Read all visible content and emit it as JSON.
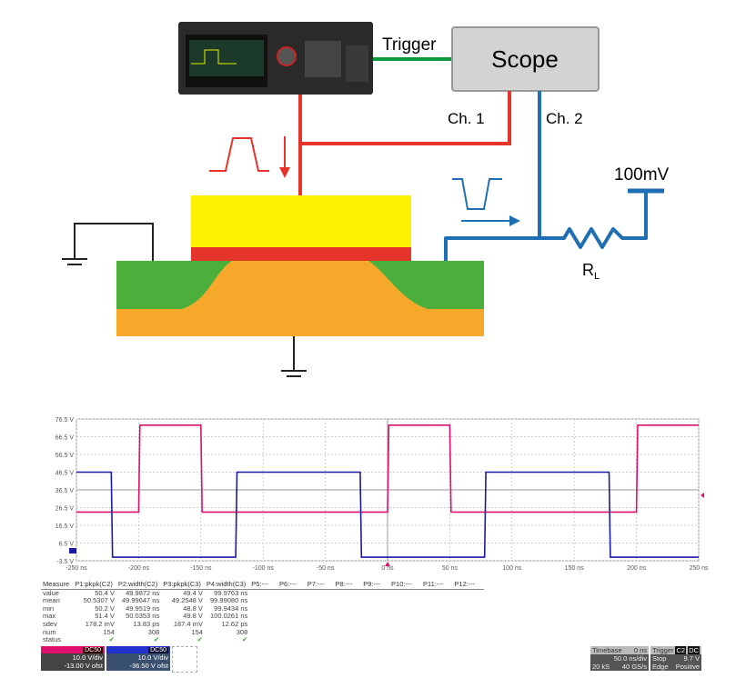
{
  "diagram": {
    "trigger_label": "Trigger",
    "scope_label": "Scope",
    "ch1_label": "Ch. 1",
    "ch2_label": "Ch. 2",
    "supply_label": "100mV",
    "resistor_label": "R",
    "resistor_sub": "L",
    "colors": {
      "trigger": "#0a9a3c",
      "ch1": "#e5342a",
      "ch2": "#1e6fb4",
      "gate": "#fff200",
      "oxide": "#e5342a",
      "substrate": "#f5a82a",
      "doped": "#4caf3c"
    }
  },
  "scope": {
    "y_ticks": [
      "76.5 V",
      "66.5 V",
      "56.5 V",
      "46.5 V",
      "36.5 V",
      "26.5 V",
      "16.5 V",
      "6.5 V",
      "-3.5 V"
    ],
    "x_ticks": [
      "-250 ns",
      "-200 ns",
      "-150 ns",
      "-100 ns",
      "-50 ns",
      "0 ns",
      "50 ns",
      "100 ns",
      "150 ns",
      "200 ns",
      "250 ns"
    ],
    "colors": {
      "c2": "#e0106e",
      "c3": "#1a1aaa"
    }
  },
  "chart_data": {
    "type": "line",
    "xlim": [
      -250,
      250
    ],
    "ylim": [
      -3.5,
      76.5
    ],
    "x_unit": "ns",
    "y_unit": "V",
    "grid": true,
    "series": [
      {
        "name": "C2",
        "low": 24,
        "high": 73,
        "rising_edges": [
          -200,
          0,
          200
        ],
        "falling_edges": [
          -150,
          50
        ]
      },
      {
        "name": "C3",
        "low": -1.5,
        "high": 46.5,
        "rising_edges": [
          -122,
          78
        ],
        "falling_edges": [
          -222,
          -22,
          178
        ]
      }
    ]
  },
  "measure": {
    "headers": [
      "Measure",
      "P1:pkpk(C2)",
      "P2:width(C2)",
      "P3:pkpk(C3)",
      "P4:width(C3)",
      "P5:---",
      "P6:---",
      "P7:---",
      "P8:---",
      "P9:---",
      "P10:---",
      "P11:---",
      "P12:---"
    ],
    "rows": [
      [
        "value",
        "50.4 V",
        "49.9872 ns",
        "49.4 V",
        "99.9763 ns"
      ],
      [
        "mean",
        "50.5307 V",
        "49.99647 ns",
        "49.2548 V",
        "99.99080 ns"
      ],
      [
        "min",
        "50.2 V",
        "49.9519 ns",
        "48.8 V",
        "99.9434 ns"
      ],
      [
        "max",
        "51.4 V",
        "50.0353 ns",
        "49.8 V",
        "100.0261 ns"
      ],
      [
        "sdev",
        "178.2 mV",
        "13.83 ps",
        "187.4 mV",
        "12.62 ps"
      ],
      [
        "num",
        "154",
        "308",
        "154",
        "308"
      ],
      [
        "status",
        "✔",
        "✔",
        "✔",
        "✔"
      ]
    ]
  },
  "channels": [
    {
      "name": "C2",
      "coupling": "DC50",
      "scale": "10.0 V/div",
      "offset": "-13.00 V ofst",
      "color": "#e0106e"
    },
    {
      "name": "C3",
      "coupling": "DC50",
      "scale": "10.0 V/div",
      "offset": "-36.50 V ofst",
      "color": "#2233cc"
    }
  ],
  "timebase": {
    "label": "Timebase",
    "delay": "0 ns",
    "scale": "50.0 ns/div",
    "samples": "20 kS",
    "rate": "40 GS/s"
  },
  "trigger": {
    "label": "Trigger",
    "source": "C2",
    "coupling": "DC",
    "mode": "Stop",
    "level": "9.7 V",
    "type": "Edge",
    "slope": "Positive"
  }
}
